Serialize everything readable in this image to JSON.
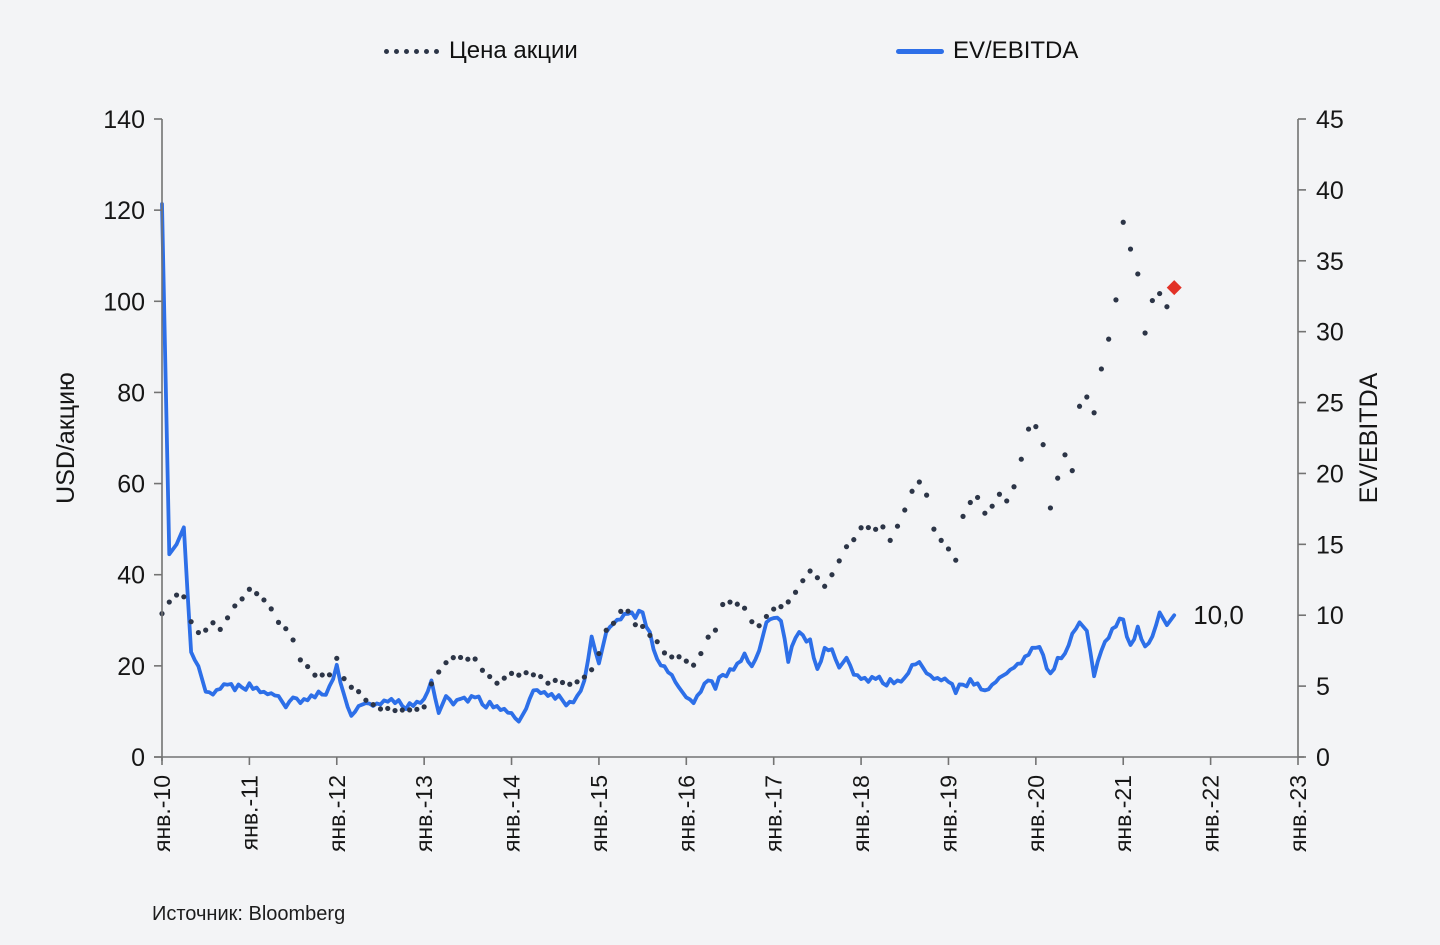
{
  "source": "Источник: Bloomberg",
  "colors": {
    "background": "#f3f4f6",
    "price_series": "#2c3547",
    "ev_series": "#2d6fe8",
    "end_marker": "#e23227",
    "axis_line": "#737373",
    "text": "#161616"
  },
  "chart_data": {
    "type": "line",
    "title": "",
    "x_unit": "month",
    "x_start": "2010-01",
    "x_end": "2021-08",
    "x_axis_range_years": [
      2010,
      2023
    ],
    "x_axis_tick_labels": [
      "янв.-10",
      "янв.-11",
      "янв.-12",
      "янв.-13",
      "янв.-14",
      "янв.-15",
      "янв.-16",
      "янв.-17",
      "янв.-18",
      "янв.-19",
      "янв.-20",
      "янв.-21",
      "янв.-22",
      "янв.-23"
    ],
    "left_axis": {
      "label": "USD/акцию",
      "min": 0,
      "max": 140,
      "tick_step": 20
    },
    "right_axis": {
      "label": "EV/EBITDA",
      "min": 0,
      "max": 45,
      "tick_step": 5
    },
    "legend_position": "top",
    "grid": false,
    "series": [
      {
        "name": "Цена акции",
        "axis": "left",
        "style": "dotted",
        "color": "#2c3547",
        "values": [
          31,
          34,
          36,
          35,
          30,
          27,
          28,
          29,
          28,
          31,
          33,
          35,
          36.5,
          36,
          34,
          32.5,
          30,
          28,
          26,
          21,
          20,
          17.5,
          18,
          18.5,
          21.5,
          17.5,
          15,
          14.5,
          12,
          11.5,
          11,
          10.5,
          10.5,
          10,
          10.5,
          10,
          11,
          16.5,
          18.5,
          21,
          21.5,
          22,
          21,
          21.5,
          19.5,
          17.5,
          16.5,
          17,
          18.5,
          17.5,
          18.5,
          18.5,
          17.5,
          16.5,
          16.5,
          16.5,
          15.5,
          16.5,
          18,
          19,
          23,
          27.5,
          29.5,
          31.5,
          32,
          29.5,
          28.5,
          27,
          25,
          23,
          21.5,
          22,
          21.5,
          20,
          23,
          26,
          28,
          33,
          34,
          34,
          32.5,
          30,
          28.5,
          31,
          32,
          33,
          34.5,
          36,
          39,
          40.5,
          39.5,
          37,
          40,
          43.5,
          46,
          48,
          50,
          50.5,
          49.5,
          50.5,
          48,
          50.5,
          54.5,
          58,
          60.5,
          57,
          50,
          48,
          45.5,
          43.5,
          52.5,
          56,
          56.5,
          53.5,
          55.5,
          57.5,
          56.5,
          59,
          65.5,
          71.5,
          72.5,
          69,
          54.5,
          61.5,
          66,
          63,
          76.5,
          79,
          76,
          85,
          92,
          100,
          117.5,
          111,
          106,
          93.5,
          100,
          102,
          98.5,
          103
        ]
      },
      {
        "name": "EV/EBITDA",
        "axis": "right",
        "style": "solid",
        "color": "#2d6fe8",
        "end_label": "10,0",
        "values": [
          39,
          14.3,
          15,
          16.2,
          7.4,
          6.4,
          4.6,
          4.4,
          4.8,
          5.1,
          4.7,
          4.9,
          5.2,
          4.9,
          4.6,
          4.5,
          4.3,
          3.5,
          4.2,
          3.8,
          4,
          4.2,
          4.4,
          5,
          6.5,
          4.4,
          2.9,
          3.6,
          3.8,
          3.6,
          3.7,
          3.9,
          3.8,
          3.6,
          3.8,
          3.9,
          4.1,
          5.4,
          3.1,
          4.3,
          3.7,
          4.1,
          3.9,
          4.2,
          3.7,
          3.9,
          3.6,
          3.4,
          3.1,
          2.5,
          3.4,
          4.7,
          4.5,
          4.3,
          4.1,
          4,
          3.9,
          4.3,
          5.4,
          8.5,
          6.6,
          8.8,
          9.4,
          9.7,
          10.1,
          9.8,
          10.2,
          8.8,
          6.9,
          6.4,
          5.8,
          4.9,
          4.2,
          3.8,
          4.6,
          5.4,
          4.8,
          5.8,
          6.2,
          6.6,
          7.3,
          6.4,
          7.5,
          9.5,
          9.8,
          9.6,
          6.7,
          8.4,
          8.6,
          8.3,
          6.2,
          7.7,
          7.6,
          6.3,
          7,
          5.8,
          5.5,
          5.3,
          5.5,
          5.2,
          5.5,
          5.4,
          5.6,
          6.5,
          6.7,
          5.9,
          5.5,
          5.4,
          5.3,
          4.5,
          5.1,
          5.5,
          5.2,
          4.7,
          5.1,
          5.6,
          5.9,
          6.3,
          6.6,
          7.2,
          7.7,
          7.2,
          5.9,
          7,
          7.3,
          8.7,
          9.5,
          8.9,
          5.7,
          7.5,
          8.4,
          9.2,
          9.7,
          7.9,
          9.2,
          7.8,
          8.5,
          10.2,
          9.3,
          10
        ]
      }
    ],
    "end_marker": {
      "series": "Цена акции",
      "shape": "diamond",
      "color": "#e23227"
    }
  }
}
